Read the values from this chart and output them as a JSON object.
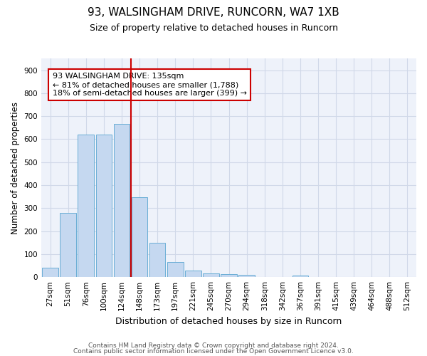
{
  "title": "93, WALSINGHAM DRIVE, RUNCORN, WA7 1XB",
  "subtitle": "Size of property relative to detached houses in Runcorn",
  "xlabel": "Distribution of detached houses by size in Runcorn",
  "ylabel": "Number of detached properties",
  "footnote1": "Contains HM Land Registry data © Crown copyright and database right 2024.",
  "footnote2": "Contains public sector information licensed under the Open Government Licence v3.0.",
  "bar_labels": [
    "27sqm",
    "51sqm",
    "76sqm",
    "100sqm",
    "124sqm",
    "148sqm",
    "173sqm",
    "197sqm",
    "221sqm",
    "245sqm",
    "270sqm",
    "294sqm",
    "318sqm",
    "342sqm",
    "367sqm",
    "391sqm",
    "415sqm",
    "439sqm",
    "464sqm",
    "488sqm",
    "512sqm"
  ],
  "bar_values": [
    40,
    278,
    620,
    620,
    668,
    348,
    148,
    65,
    28,
    15,
    12,
    11,
    0,
    0,
    8,
    0,
    0,
    0,
    0,
    0,
    0
  ],
  "bar_color": "#c5d8f0",
  "bar_edge_color": "#6aaed6",
  "ylim": [
    0,
    950
  ],
  "yticks": [
    0,
    100,
    200,
    300,
    400,
    500,
    600,
    700,
    800,
    900
  ],
  "vline_x_index": 4.5,
  "annotation_line1": "93 WALSINGHAM DRIVE: 135sqm",
  "annotation_line2": "← 81% of detached houses are smaller (1,788)",
  "annotation_line3": "18% of semi-detached houses are larger (399) →",
  "vline_color": "#cc0000",
  "annotation_box_edge": "#cc0000",
  "grid_color": "#d0d8e8",
  "background_color": "#eef2fa",
  "title_fontsize": 11,
  "subtitle_fontsize": 9,
  "ylabel_fontsize": 8.5,
  "xlabel_fontsize": 9,
  "tick_fontsize": 7.5,
  "annotation_fontsize": 8,
  "footnote_fontsize": 6.5
}
